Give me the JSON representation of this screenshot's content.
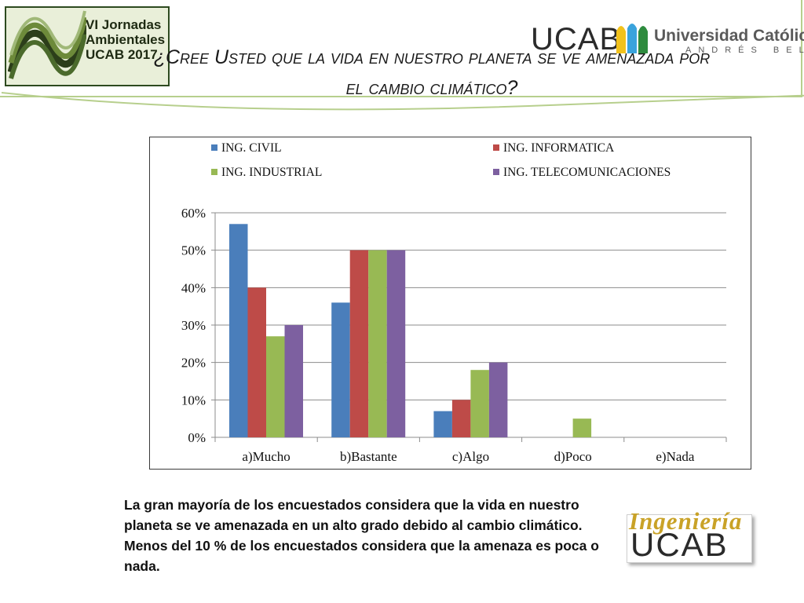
{
  "header": {
    "event_logo": {
      "line1": "VI Jornadas",
      "line2": "Ambientales",
      "line3": "UCAB 2017"
    },
    "university_logo": {
      "acronym": "UCAB",
      "name": "Universidad Católica",
      "subname": "ANDRÉS BELLO"
    },
    "title_line1": "¿Cree Usted que la vida en nuestro planeta se ve amenazada por",
    "title_line2": "el cambio climático?"
  },
  "colors": {
    "civil": "#4a7ebb",
    "informatica": "#be4b48",
    "industrial": "#98b954",
    "telecom": "#7d60a0",
    "accent_green": "#b7cf8d"
  },
  "chart_data": {
    "type": "bar",
    "title": "",
    "xlabel": "",
    "ylabel": "",
    "categories": [
      "a)Mucho",
      "b)Bastante",
      "c)Algo",
      "d)Poco",
      "e)Nada"
    ],
    "series": [
      {
        "name": "ING. CIVIL",
        "values": [
          57,
          36,
          7,
          0,
          0
        ]
      },
      {
        "name": "ING. INFORMATICA",
        "values": [
          40,
          50,
          10,
          0,
          0
        ]
      },
      {
        "name": "ING. INDUSTRIAL",
        "values": [
          27,
          50,
          18,
          5,
          0
        ]
      },
      {
        "name": "ING. TELECOMUNICACIONES",
        "values": [
          30,
          50,
          20,
          0,
          0
        ]
      }
    ],
    "y_ticks": [
      "0%",
      "10%",
      "20%",
      "30%",
      "40%",
      "50%",
      "60%"
    ],
    "ylim": [
      0,
      60
    ],
    "y_unit": "%",
    "grid": true,
    "legend_position": "top"
  },
  "conclusion_text": "La gran mayoría de los encuestados considera que la vida en nuestro planeta se ve amenazada en un alto grado debido al cambio climático. Menos del 10 % de los encuestados considera que la amenaza es poca o nada.",
  "footer_logo": {
    "script": "Ingeniería",
    "acronym": "UCAB"
  }
}
